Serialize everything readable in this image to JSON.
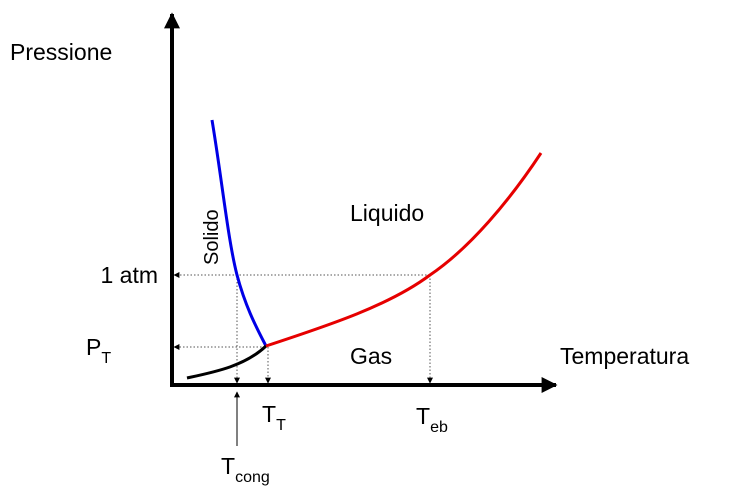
{
  "axes": {
    "y_label": "Pressione",
    "x_label": "Temperatura"
  },
  "regions": {
    "solid": "Solido",
    "liquid": "Liquido",
    "gas": "Gas"
  },
  "pressure_marks": {
    "atm": "1 atm",
    "triple": {
      "main": "P",
      "sub": "T"
    }
  },
  "temperature_marks": {
    "triple": {
      "main": "T",
      "sub": "T"
    },
    "boiling": {
      "main": "T",
      "sub": "eb"
    },
    "freezing": {
      "main": "T",
      "sub": "cong"
    }
  }
}
